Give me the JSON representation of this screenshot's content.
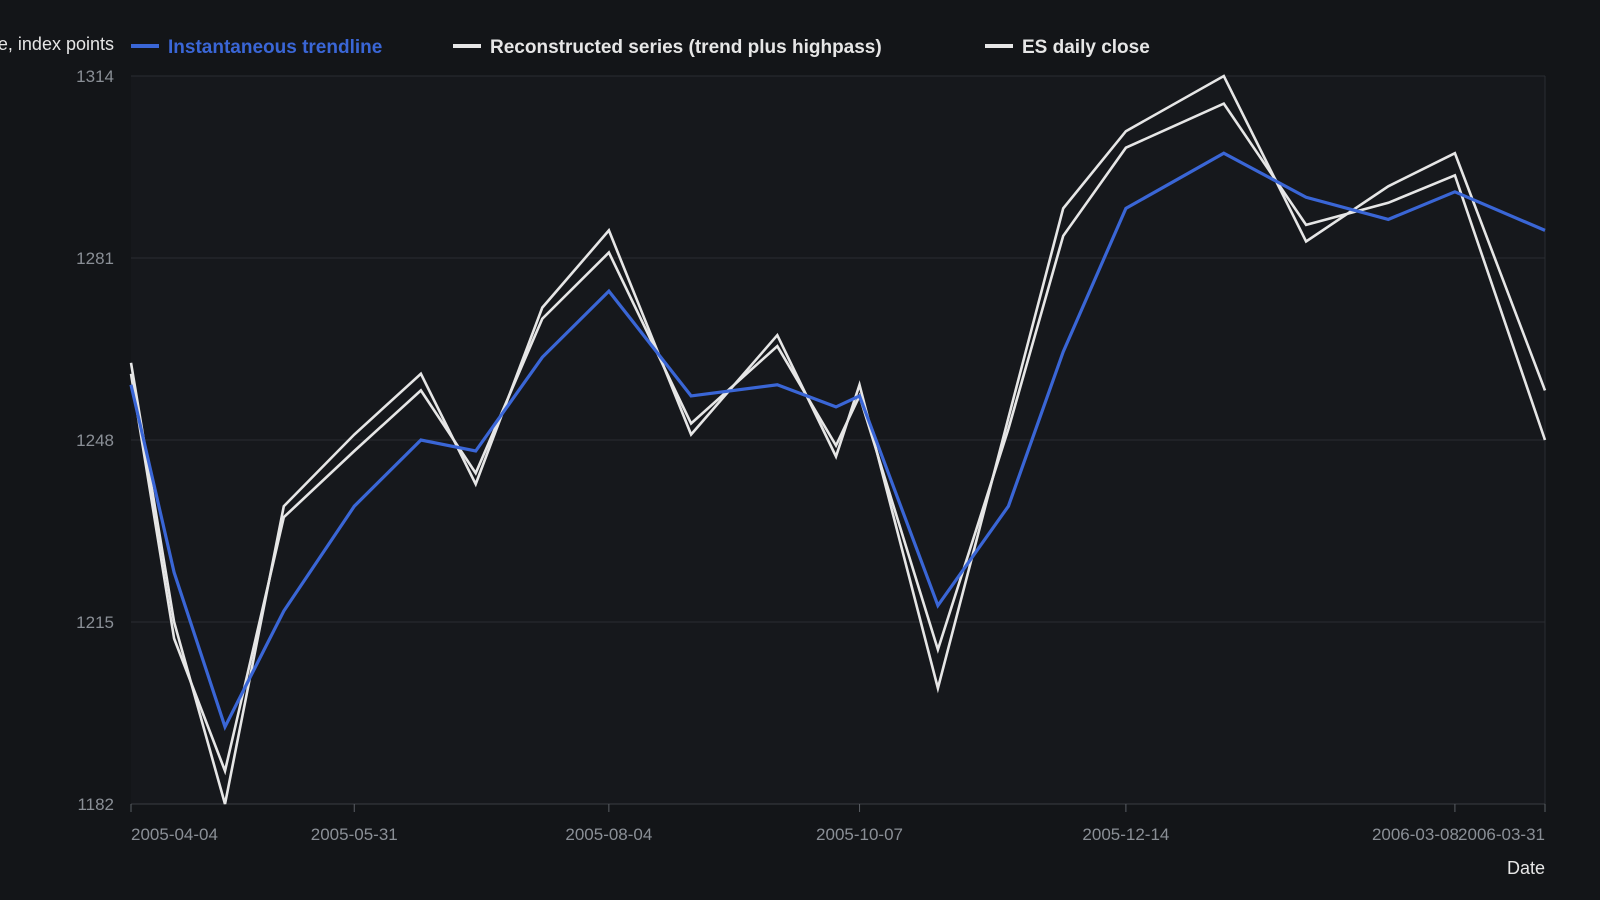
{
  "chart_data": {
    "type": "line",
    "title": "",
    "xlabel": "Date",
    "ylabel": "ES close, index points",
    "ylim": [
      1182,
      1314
    ],
    "yticks": [
      1182,
      1215,
      1248,
      1281,
      1314
    ],
    "xticks": [
      "2005-04-04",
      "2005-05-31",
      "2005-08-04",
      "2005-10-07",
      "2005-12-14",
      "2006-03-08",
      "2006-03-31"
    ],
    "x": [
      "2005-04-04",
      "2005-04-15",
      "2005-04-28",
      "2005-05-13",
      "2005-05-31",
      "2005-06-17",
      "2005-07-01",
      "2005-07-18",
      "2005-08-04",
      "2005-08-25",
      "2005-09-16",
      "2005-10-01",
      "2005-10-07",
      "2005-10-27",
      "2005-11-14",
      "2005-11-28",
      "2005-12-14",
      "2006-01-08",
      "2006-01-29",
      "2006-02-19",
      "2006-03-08",
      "2006-03-31"
    ],
    "grid": true,
    "legend_position": "top",
    "series": [
      {
        "name": "Instantaneous trendline",
        "color": "#3a66d6",
        "values": [
          1258,
          1224,
          1196,
          1217,
          1236,
          1248,
          1246,
          1263,
          1275,
          1256,
          1258,
          1254,
          1256,
          1218,
          1236,
          1264,
          1290,
          1300,
          1292,
          1288,
          1293,
          1286
        ]
      },
      {
        "name": "Reconstructed series (trend plus highpass)",
        "color": "#e6e6e6",
        "values": [
          1262,
          1215,
          1182,
          1236,
          1249,
          1260,
          1240,
          1272,
          1286,
          1249,
          1267,
          1245,
          1258,
          1203,
          1252,
          1290,
          1304,
          1314,
          1284,
          1294,
          1300,
          1257
        ]
      },
      {
        "name": "ES daily close",
        "color": "#e6e6e6",
        "values": [
          1260,
          1212,
          1188,
          1234,
          1246,
          1257,
          1242,
          1270,
          1282,
          1251,
          1265,
          1247,
          1256,
          1210,
          1250,
          1285,
          1301,
          1309,
          1287,
          1291,
          1296,
          1248
        ]
      }
    ]
  }
}
